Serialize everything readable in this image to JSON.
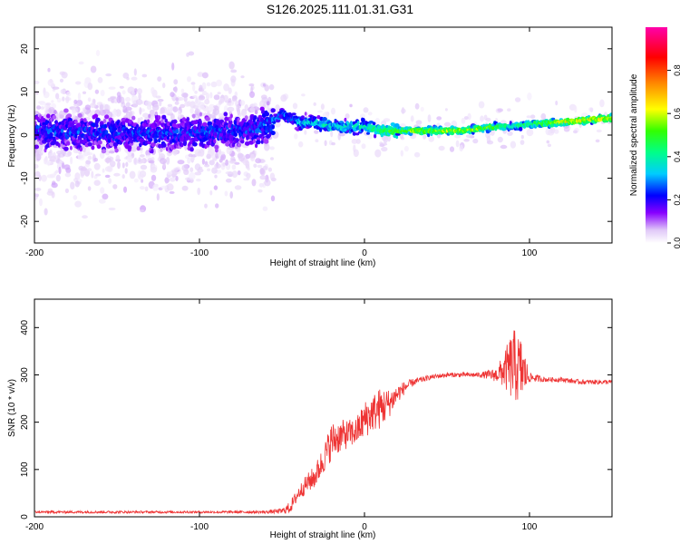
{
  "title": "S126.2025.111.01.31.G31",
  "chart_data": [
    {
      "type": "heatmap",
      "title": "S126.2025.111.01.31.G31",
      "xlabel": "Height of straight line (km)",
      "ylabel": "Frequency (Hz)",
      "xlim": [
        -200,
        150
      ],
      "ylim": [
        -25,
        25
      ],
      "x_ticks": [
        -200,
        -100,
        0,
        100
      ],
      "y_ticks": [
        -20,
        -10,
        0,
        10,
        20
      ],
      "colorbar": {
        "label": "Normalized spectral amplitude",
        "range": [
          0,
          1
        ],
        "ticks": [
          0.0,
          0.2,
          0.4,
          0.6,
          0.8
        ],
        "colors": [
          "#ffffff",
          "#e0c8f8",
          "#8800ff",
          "#0000ff",
          "#00ccff",
          "#00ff88",
          "#33ff00",
          "#ffff00",
          "#ff8800",
          "#ff0000",
          "#ff00aa"
        ]
      },
      "ridge": {
        "x": [
          -200,
          -150,
          -100,
          -70,
          -55,
          -50,
          -45,
          -40,
          -30,
          -20,
          -10,
          0,
          10,
          30,
          60,
          80,
          90,
          100,
          120,
          150
        ],
        "freq": [
          1,
          0.5,
          0.5,
          1,
          3,
          5,
          4,
          3,
          3,
          2,
          2,
          2,
          1,
          1,
          1,
          2,
          2,
          2.5,
          3,
          4
        ],
        "amplitude": [
          0.3,
          0.3,
          0.3,
          0.3,
          0.35,
          0.35,
          0.35,
          0.4,
          0.4,
          0.45,
          0.45,
          0.45,
          0.55,
          0.65,
          0.65,
          0.6,
          0.5,
          0.55,
          0.7,
          0.7
        ]
      }
    },
    {
      "type": "line",
      "xlabel": "Height of straight line (km)",
      "ylabel": "SNR (10 * v/v)",
      "xlim": [
        -200,
        150
      ],
      "ylim": [
        0,
        460
      ],
      "x_ticks": [
        -200,
        -100,
        0,
        100
      ],
      "y_ticks": [
        0,
        100,
        200,
        300,
        400
      ],
      "series": [
        {
          "color": "#ee3333",
          "x": [
            -200,
            -150,
            -100,
            -60,
            -50,
            -45,
            -40,
            -35,
            -30,
            -25,
            -20,
            -15,
            -10,
            -5,
            0,
            5,
            10,
            15,
            20,
            25,
            30,
            40,
            50,
            60,
            70,
            80,
            85,
            90,
            95,
            100,
            110,
            120,
            130,
            140,
            150
          ],
          "y": [
            10,
            10,
            10,
            10,
            12,
            20,
            50,
            70,
            85,
            120,
            160,
            170,
            175,
            180,
            205,
            220,
            230,
            240,
            260,
            275,
            285,
            295,
            300,
            300,
            300,
            300,
            310,
            320,
            310,
            295,
            290,
            290,
            285,
            285,
            285
          ],
          "noise": [
            5,
            5,
            5,
            6,
            12,
            25,
            30,
            40,
            50,
            60,
            80,
            70,
            60,
            60,
            80,
            80,
            90,
            60,
            40,
            25,
            15,
            10,
            10,
            10,
            10,
            30,
            80,
            160,
            140,
            20,
            10,
            10,
            10,
            10,
            10
          ]
        }
      ]
    }
  ]
}
